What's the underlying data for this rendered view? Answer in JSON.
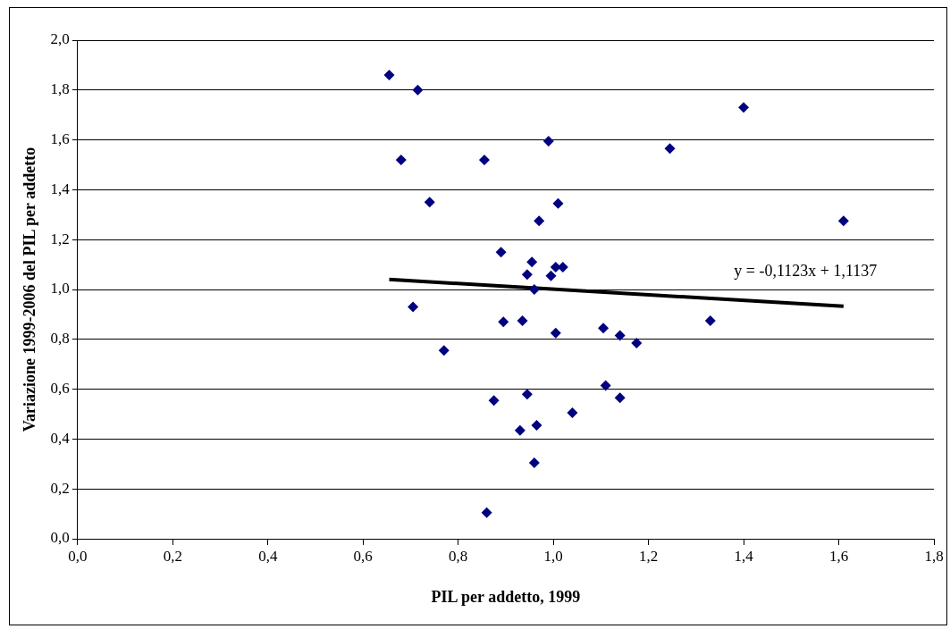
{
  "chart_data": {
    "type": "scatter",
    "xlabel": "PIL per addetto, 1999",
    "ylabel": "Variazione 1999-2006 del PIL per addetto",
    "xlim": [
      0,
      1.8
    ],
    "ylim": [
      0,
      2
    ],
    "xticks": [
      {
        "value": 0,
        "label": "0,0"
      },
      {
        "value": 0.2,
        "label": "0,2"
      },
      {
        "value": 0.4,
        "label": "0,4"
      },
      {
        "value": 0.6,
        "label": "0,6"
      },
      {
        "value": 0.8,
        "label": "0,8"
      },
      {
        "value": 1,
        "label": "1,0"
      },
      {
        "value": 1.2,
        "label": "1,2"
      },
      {
        "value": 1.4,
        "label": "1,4"
      },
      {
        "value": 1.6,
        "label": "1,6"
      },
      {
        "value": 1.8,
        "label": "1,8"
      }
    ],
    "yticks": [
      {
        "value": 0,
        "label": "0,0"
      },
      {
        "value": 0.2,
        "label": "0,2"
      },
      {
        "value": 0.4,
        "label": "0,4"
      },
      {
        "value": 0.6,
        "label": "0,6"
      },
      {
        "value": 0.8,
        "label": "0,8"
      },
      {
        "value": 1,
        "label": "1,0"
      },
      {
        "value": 1.2,
        "label": "1,2"
      },
      {
        "value": 1.4,
        "label": "1,4"
      },
      {
        "value": 1.6,
        "label": "1,6"
      },
      {
        "value": 1.8,
        "label": "1,8"
      },
      {
        "value": 2,
        "label": "2,0"
      }
    ],
    "grid": "y",
    "legend": false,
    "marker": "diamond",
    "series": [
      {
        "color": "#000080",
        "x": [
          0.655,
          0.715,
          0.68,
          0.74,
          0.705,
          0.77,
          0.855,
          0.89,
          0.895,
          0.875,
          0.86,
          0.93,
          0.935,
          0.945,
          0.945,
          0.955,
          0.96,
          0.96,
          0.965,
          0.97,
          0.99,
          0.995,
          1.005,
          1.005,
          1.01,
          1.02,
          1.04,
          1.105,
          1.11,
          1.14,
          1.14,
          1.175,
          1.245,
          1.33,
          1.4,
          1.61
        ],
        "values": [
          1.86,
          1.8,
          1.52,
          1.35,
          0.93,
          0.755,
          1.52,
          1.15,
          0.87,
          0.555,
          0.105,
          0.435,
          0.875,
          1.06,
          0.58,
          1.11,
          1.0,
          0.305,
          0.455,
          1.275,
          1.595,
          1.055,
          1.09,
          0.825,
          1.345,
          1.09,
          0.505,
          0.845,
          0.615,
          0.815,
          0.565,
          0.785,
          1.565,
          0.875,
          1.73,
          1.275
        ]
      },
      {
        "type": "line",
        "color": "#000000",
        "marker": "none",
        "x": [
          0.655,
          1.61
        ],
        "values": [
          1.04,
          0.933
        ]
      }
    ],
    "annotations": [
      "y = -0,1123x + 1,1137"
    ]
  }
}
